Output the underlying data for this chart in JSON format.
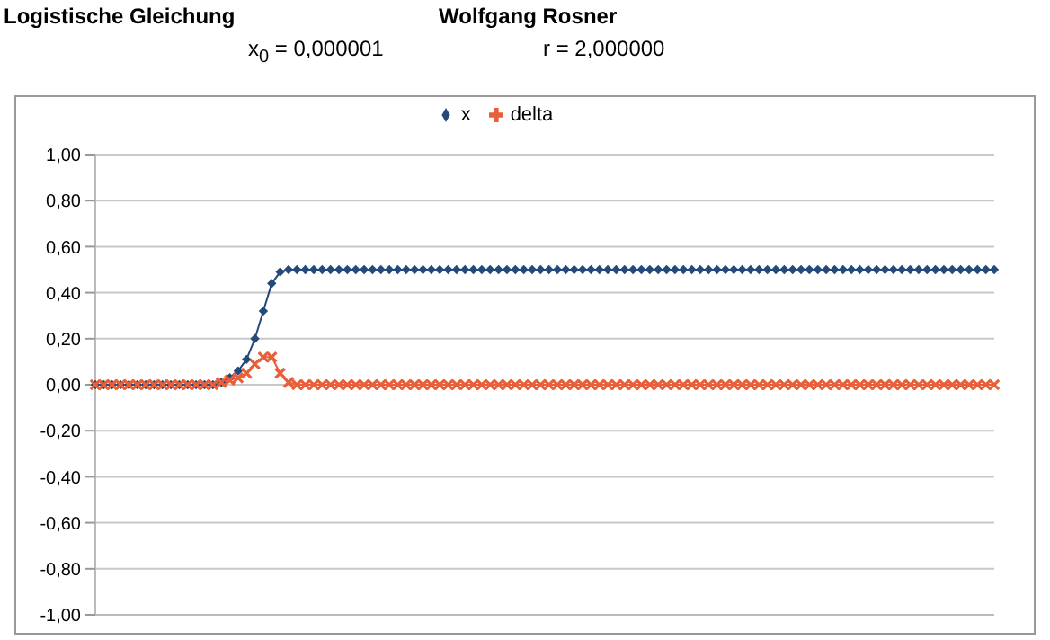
{
  "chart_data": {
    "type": "line",
    "title": "Logistische Gleichung",
    "annotations": [
      "Wolfgang Rosner",
      "x$_{0}$ = 0,000001",
      "r = 2,000000"
    ],
    "categories": [
      null,
      null,
      null,
      null,
      null,
      null,
      null,
      null,
      null,
      null,
      null,
      null,
      null,
      null,
      null,
      null,
      null,
      null,
      null,
      null,
      null,
      null,
      null,
      null,
      null,
      null,
      null,
      null,
      null,
      null,
      null,
      null,
      null,
      null,
      null,
      null,
      null,
      null,
      null,
      null,
      null,
      null,
      null,
      null,
      null,
      null,
      null,
      null,
      null,
      null,
      null,
      null,
      null,
      null,
      null,
      null,
      null,
      null,
      null,
      null,
      null,
      null,
      null,
      null,
      null,
      null,
      null,
      null,
      null,
      null,
      null,
      null,
      null,
      null,
      null,
      null,
      null,
      null,
      null,
      null,
      null,
      null,
      null,
      null,
      null,
      null,
      null,
      null,
      null,
      null,
      null,
      null,
      null,
      null,
      null,
      null,
      null,
      null,
      null,
      null,
      null,
      null,
      null,
      null,
      null,
      null,
      null,
      null
    ],
    "series": [
      {
        "name": "x",
        "color": "#244a7a",
        "marker": "diamond",
        "values": [
          0,
          0,
          0,
          0,
          0,
          0,
          0,
          0,
          0,
          0,
          0,
          0,
          0,
          0,
          0,
          0.01,
          0.03,
          0.06,
          0.11,
          0.2,
          0.32,
          0.44,
          0.49,
          0.5,
          0.5,
          0.5,
          0.5,
          0.5,
          0.5,
          0.5,
          0.5,
          0.5,
          0.5,
          0.5,
          0.5,
          0.5,
          0.5,
          0.5,
          0.5,
          0.5,
          0.5,
          0.5,
          0.5,
          0.5,
          0.5,
          0.5,
          0.5,
          0.5,
          0.5,
          0.5,
          0.5,
          0.5,
          0.5,
          0.5,
          0.5,
          0.5,
          0.5,
          0.5,
          0.5,
          0.5,
          0.5,
          0.5,
          0.5,
          0.5,
          0.5,
          0.5,
          0.5,
          0.5,
          0.5,
          0.5,
          0.5,
          0.5,
          0.5,
          0.5,
          0.5,
          0.5,
          0.5,
          0.5,
          0.5,
          0.5,
          0.5,
          0.5,
          0.5,
          0.5,
          0.5,
          0.5,
          0.5,
          0.5,
          0.5,
          0.5,
          0.5,
          0.5,
          0.5,
          0.5,
          0.5,
          0.5,
          0.5,
          0.5,
          0.5,
          0.5,
          0.5,
          0.5,
          0.5,
          0.5,
          0.5,
          0.5,
          0.5,
          0.5
        ]
      },
      {
        "name": "delta",
        "color": "#e8603a",
        "marker": "cross",
        "values": [
          0,
          0,
          0,
          0,
          0,
          0,
          0,
          0,
          0,
          0,
          0,
          0,
          0,
          0,
          0,
          0.01,
          0.02,
          0.03,
          0.05,
          0.09,
          0.12,
          0.12,
          0.05,
          0.01,
          0,
          0,
          0,
          0,
          0,
          0,
          0,
          0,
          0,
          0,
          0,
          0,
          0,
          0,
          0,
          0,
          0,
          0,
          0,
          0,
          0,
          0,
          0,
          0,
          0,
          0,
          0,
          0,
          0,
          0,
          0,
          0,
          0,
          0,
          0,
          0,
          0,
          0,
          0,
          0,
          0,
          0,
          0,
          0,
          0,
          0,
          0,
          0,
          0,
          0,
          0,
          0,
          0,
          0,
          0,
          0,
          0,
          0,
          0,
          0,
          0,
          0,
          0,
          0,
          0,
          0,
          0,
          0,
          0,
          0,
          0,
          0,
          0,
          0,
          0,
          0,
          0,
          0,
          0,
          0,
          0,
          0,
          0,
          0
        ]
      }
    ],
    "ylim": [
      -1,
      1
    ],
    "yticks": [
      {
        "value": -1,
        "label": "-1,00"
      },
      {
        "value": -0.8,
        "label": "-0,80"
      },
      {
        "value": -0.6,
        "label": "-0,60"
      },
      {
        "value": -0.4,
        "label": "-0,40"
      },
      {
        "value": -0.2,
        "label": "-0,20"
      },
      {
        "value": 0,
        "label": "0,00"
      },
      {
        "value": 0.2,
        "label": "0,20"
      },
      {
        "value": 0.4,
        "label": "0,40"
      },
      {
        "value": 0.6,
        "label": "0,60"
      },
      {
        "value": 0.8,
        "label": "0,80"
      },
      {
        "value": 1,
        "label": "1,00"
      }
    ],
    "grid": "y",
    "legend": "top"
  }
}
